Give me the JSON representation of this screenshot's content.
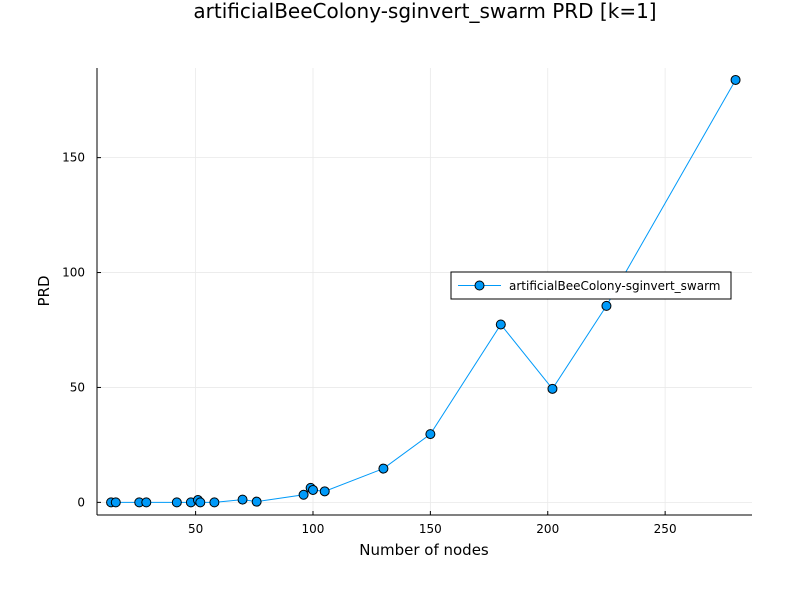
{
  "chart_data": {
    "type": "line",
    "title": "artificialBeeColony-sginvert_swarm PRD [k=1]",
    "xlabel": "Number of nodes",
    "ylabel": "PRD",
    "xlim": [
      8,
      287
    ],
    "ylim": [
      -5.5,
      189
    ],
    "xticks": [
      50,
      100,
      150,
      200,
      250
    ],
    "yticks": [
      0,
      50,
      100,
      150
    ],
    "grid": true,
    "legend": "right",
    "series": [
      {
        "name": "artificialBeeColony-sginvert_swarm",
        "color": "#009af9",
        "marker": "circle",
        "x": [
          14,
          16,
          26,
          29,
          42,
          48,
          51,
          52,
          58,
          70,
          76,
          96,
          99,
          100,
          105,
          130,
          150,
          180,
          202,
          225,
          280
        ],
        "y": [
          0.0,
          0.0,
          0.0,
          0.0,
          0.0,
          0.0,
          1.0,
          0.0,
          0.0,
          1.2,
          0.3,
          3.3,
          6.3,
          5.4,
          4.8,
          14.7,
          29.7,
          77.4,
          49.4,
          85.5,
          183.8
        ]
      }
    ]
  }
}
